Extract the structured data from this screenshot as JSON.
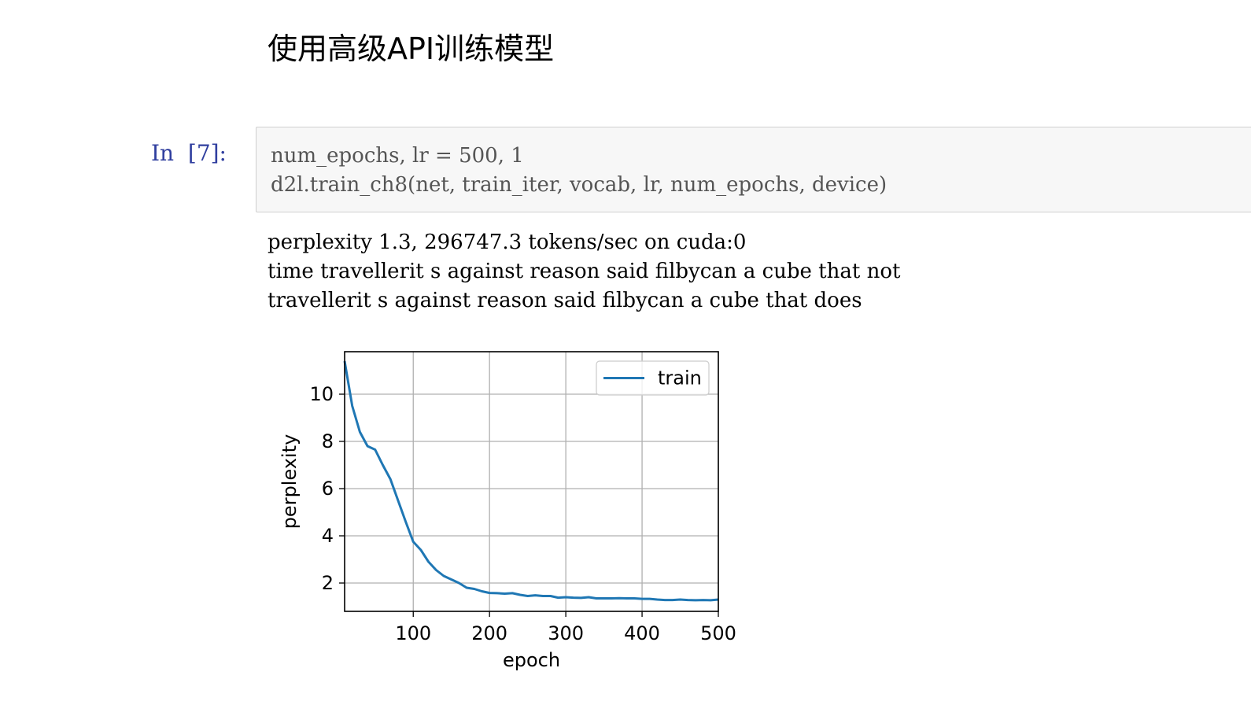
{
  "heading": "使用高级API训练模型",
  "cell": {
    "prompt": "In  [7]:",
    "code_lines": [
      "num_epochs, lr = 500, 1",
      "d2l.train_ch8(net, train_iter, vocab, lr, num_epochs, device)"
    ]
  },
  "output": {
    "lines": [
      "perplexity 1.3, 296747.3 tokens/sec on cuda:0",
      "time travellerit s against reason said filbycan a cube that not",
      "travellerit s against reason said filbycan a cube that does"
    ]
  },
  "chart_data": {
    "type": "line",
    "title": "",
    "xlabel": "epoch",
    "ylabel": "perplexity",
    "xlim": [
      10,
      500
    ],
    "ylim": [
      0.8,
      11.8
    ],
    "xticks": [
      100,
      200,
      300,
      400,
      500
    ],
    "yticks": [
      2,
      4,
      6,
      8,
      10
    ],
    "grid": true,
    "legend": "top-right",
    "series": [
      {
        "name": "train",
        "color": "#1f77b4",
        "x": [
          10,
          20,
          30,
          40,
          50,
          60,
          70,
          80,
          90,
          100,
          110,
          120,
          130,
          140,
          150,
          160,
          170,
          180,
          190,
          200,
          210,
          220,
          230,
          240,
          250,
          260,
          270,
          280,
          290,
          300,
          310,
          320,
          330,
          340,
          350,
          360,
          370,
          380,
          390,
          400,
          410,
          420,
          430,
          440,
          450,
          460,
          470,
          480,
          490,
          500
        ],
        "y": [
          11.4,
          9.5,
          8.4,
          7.8,
          7.65,
          7.0,
          6.4,
          5.5,
          4.6,
          3.75,
          3.4,
          2.9,
          2.55,
          2.3,
          2.15,
          2.0,
          1.8,
          1.75,
          1.65,
          1.58,
          1.57,
          1.55,
          1.57,
          1.5,
          1.45,
          1.48,
          1.45,
          1.45,
          1.38,
          1.4,
          1.38,
          1.37,
          1.4,
          1.35,
          1.35,
          1.35,
          1.36,
          1.35,
          1.35,
          1.33,
          1.33,
          1.3,
          1.28,
          1.28,
          1.3,
          1.28,
          1.27,
          1.28,
          1.27,
          1.3
        ]
      }
    ]
  }
}
